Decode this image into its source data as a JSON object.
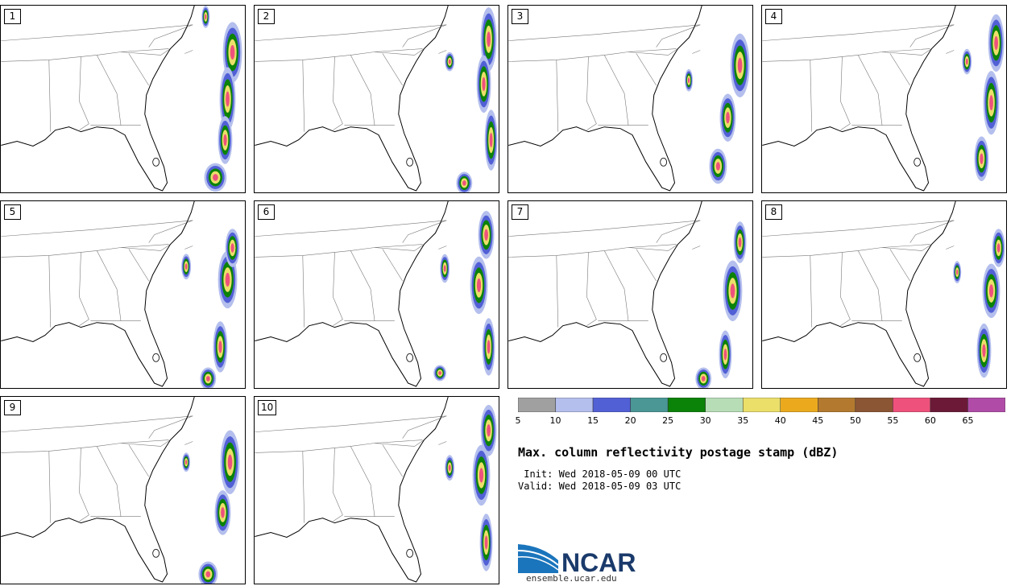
{
  "panels": [
    {
      "label": "1",
      "storms": [
        [
          0.95,
          0.25,
          12,
          38
        ],
        [
          0.93,
          0.5,
          10,
          40
        ],
        [
          0.92,
          0.72,
          9,
          30
        ],
        [
          0.88,
          0.92,
          14,
          18
        ],
        [
          0.84,
          0.06,
          5,
          14
        ]
      ]
    },
    {
      "label": "2",
      "storms": [
        [
          0.96,
          0.18,
          10,
          40
        ],
        [
          0.94,
          0.42,
          9,
          36
        ],
        [
          0.97,
          0.72,
          8,
          38
        ],
        [
          0.8,
          0.3,
          6,
          12
        ],
        [
          0.86,
          0.95,
          10,
          14
        ]
      ]
    },
    {
      "label": "3",
      "storms": [
        [
          0.95,
          0.32,
          12,
          40
        ],
        [
          0.9,
          0.6,
          10,
          30
        ],
        [
          0.86,
          0.86,
          11,
          22
        ],
        [
          0.74,
          0.4,
          5,
          14
        ]
      ]
    },
    {
      "label": "4",
      "storms": [
        [
          0.96,
          0.2,
          10,
          36
        ],
        [
          0.94,
          0.52,
          10,
          40
        ],
        [
          0.9,
          0.82,
          9,
          28
        ],
        [
          0.84,
          0.3,
          6,
          16
        ]
      ]
    },
    {
      "label": "5",
      "storms": [
        [
          0.93,
          0.42,
          12,
          36
        ],
        [
          0.95,
          0.25,
          9,
          24
        ],
        [
          0.9,
          0.78,
          9,
          32
        ],
        [
          0.76,
          0.35,
          6,
          16
        ],
        [
          0.85,
          0.95,
          10,
          14
        ]
      ]
    },
    {
      "label": "6",
      "storms": [
        [
          0.95,
          0.18,
          10,
          30
        ],
        [
          0.92,
          0.45,
          11,
          36
        ],
        [
          0.96,
          0.78,
          8,
          36
        ],
        [
          0.78,
          0.36,
          6,
          18
        ],
        [
          0.76,
          0.92,
          8,
          10
        ]
      ]
    },
    {
      "label": "7",
      "storms": [
        [
          0.92,
          0.48,
          12,
          38
        ],
        [
          0.95,
          0.22,
          8,
          26
        ],
        [
          0.89,
          0.82,
          8,
          30
        ],
        [
          0.8,
          0.95,
          10,
          14
        ]
      ]
    },
    {
      "label": "8",
      "storms": [
        [
          0.94,
          0.48,
          11,
          34
        ],
        [
          0.97,
          0.25,
          8,
          24
        ],
        [
          0.91,
          0.8,
          9,
          34
        ],
        [
          0.8,
          0.38,
          5,
          14
        ]
      ]
    },
    {
      "label": "9",
      "storms": [
        [
          0.94,
          0.35,
          12,
          40
        ],
        [
          0.91,
          0.62,
          10,
          28
        ],
        [
          0.85,
          0.95,
          12,
          16
        ],
        [
          0.76,
          0.35,
          5,
          12
        ]
      ]
    },
    {
      "label": "10",
      "storms": [
        [
          0.96,
          0.18,
          10,
          32
        ],
        [
          0.93,
          0.42,
          11,
          38
        ],
        [
          0.95,
          0.78,
          8,
          36
        ],
        [
          0.8,
          0.38,
          6,
          16
        ]
      ]
    }
  ],
  "colorbar": {
    "colors": [
      "#a0a0a0",
      "#b4bfed",
      "#5260d6",
      "#4a9796",
      "#0b8208",
      "#b7ddb7",
      "#ebdf6a",
      "#ebaa1e",
      "#b37a2f",
      "#8b5634",
      "#ee527c",
      "#6b1937",
      "#b04ca8"
    ],
    "labels": [
      "5",
      "10",
      "15",
      "20",
      "25",
      "30",
      "35",
      "40",
      "45",
      "50",
      "55",
      "60",
      "65"
    ]
  },
  "title": "Max. column reflectivity postage stamp (dBZ)",
  "init_text": " Init: Wed 2018-05-09 00 UTC",
  "valid_text": "Valid: Wed 2018-05-09 03 UTC",
  "logo": {
    "text": "NCAR",
    "url": "ensemble.ucar.edu",
    "brand_color": "#1b75bc",
    "text_color": "#1a3a6b"
  }
}
